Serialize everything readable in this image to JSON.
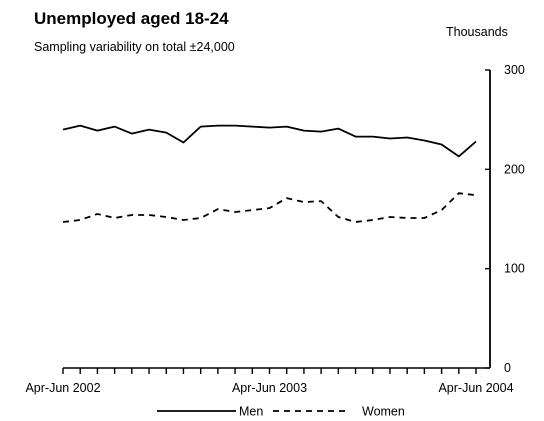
{
  "chart_data": {
    "type": "line",
    "title": "Unemployed aged 18-24",
    "subtitle": "Sampling variability on total  ±24,000",
    "ylabel": "Thousands",
    "xlabel": "",
    "ylim": [
      0,
      300
    ],
    "yticks": [
      0,
      100,
      200,
      300
    ],
    "xtick_labels": [
      "Apr-Jun 2002",
      "Apr-Jun 2003",
      "Apr-Jun 2004"
    ],
    "xtick_label_indices": [
      0,
      12,
      24
    ],
    "periods": 25,
    "grid": false,
    "legend_position": "bottom",
    "series": [
      {
        "name": "Men",
        "style": "solid",
        "values": [
          240,
          244,
          239,
          243,
          236,
          240,
          237,
          227,
          243,
          244,
          244,
          243,
          242,
          243,
          239,
          238,
          241,
          233,
          233,
          231,
          232,
          229,
          225,
          213,
          228
        ]
      },
      {
        "name": "Women",
        "style": "dashed",
        "values": [
          147,
          149,
          155,
          151,
          154,
          154,
          152,
          149,
          151,
          160,
          157,
          159,
          161,
          171,
          167,
          168,
          152,
          147,
          149,
          152,
          151,
          151,
          159,
          176,
          174
        ]
      }
    ]
  }
}
